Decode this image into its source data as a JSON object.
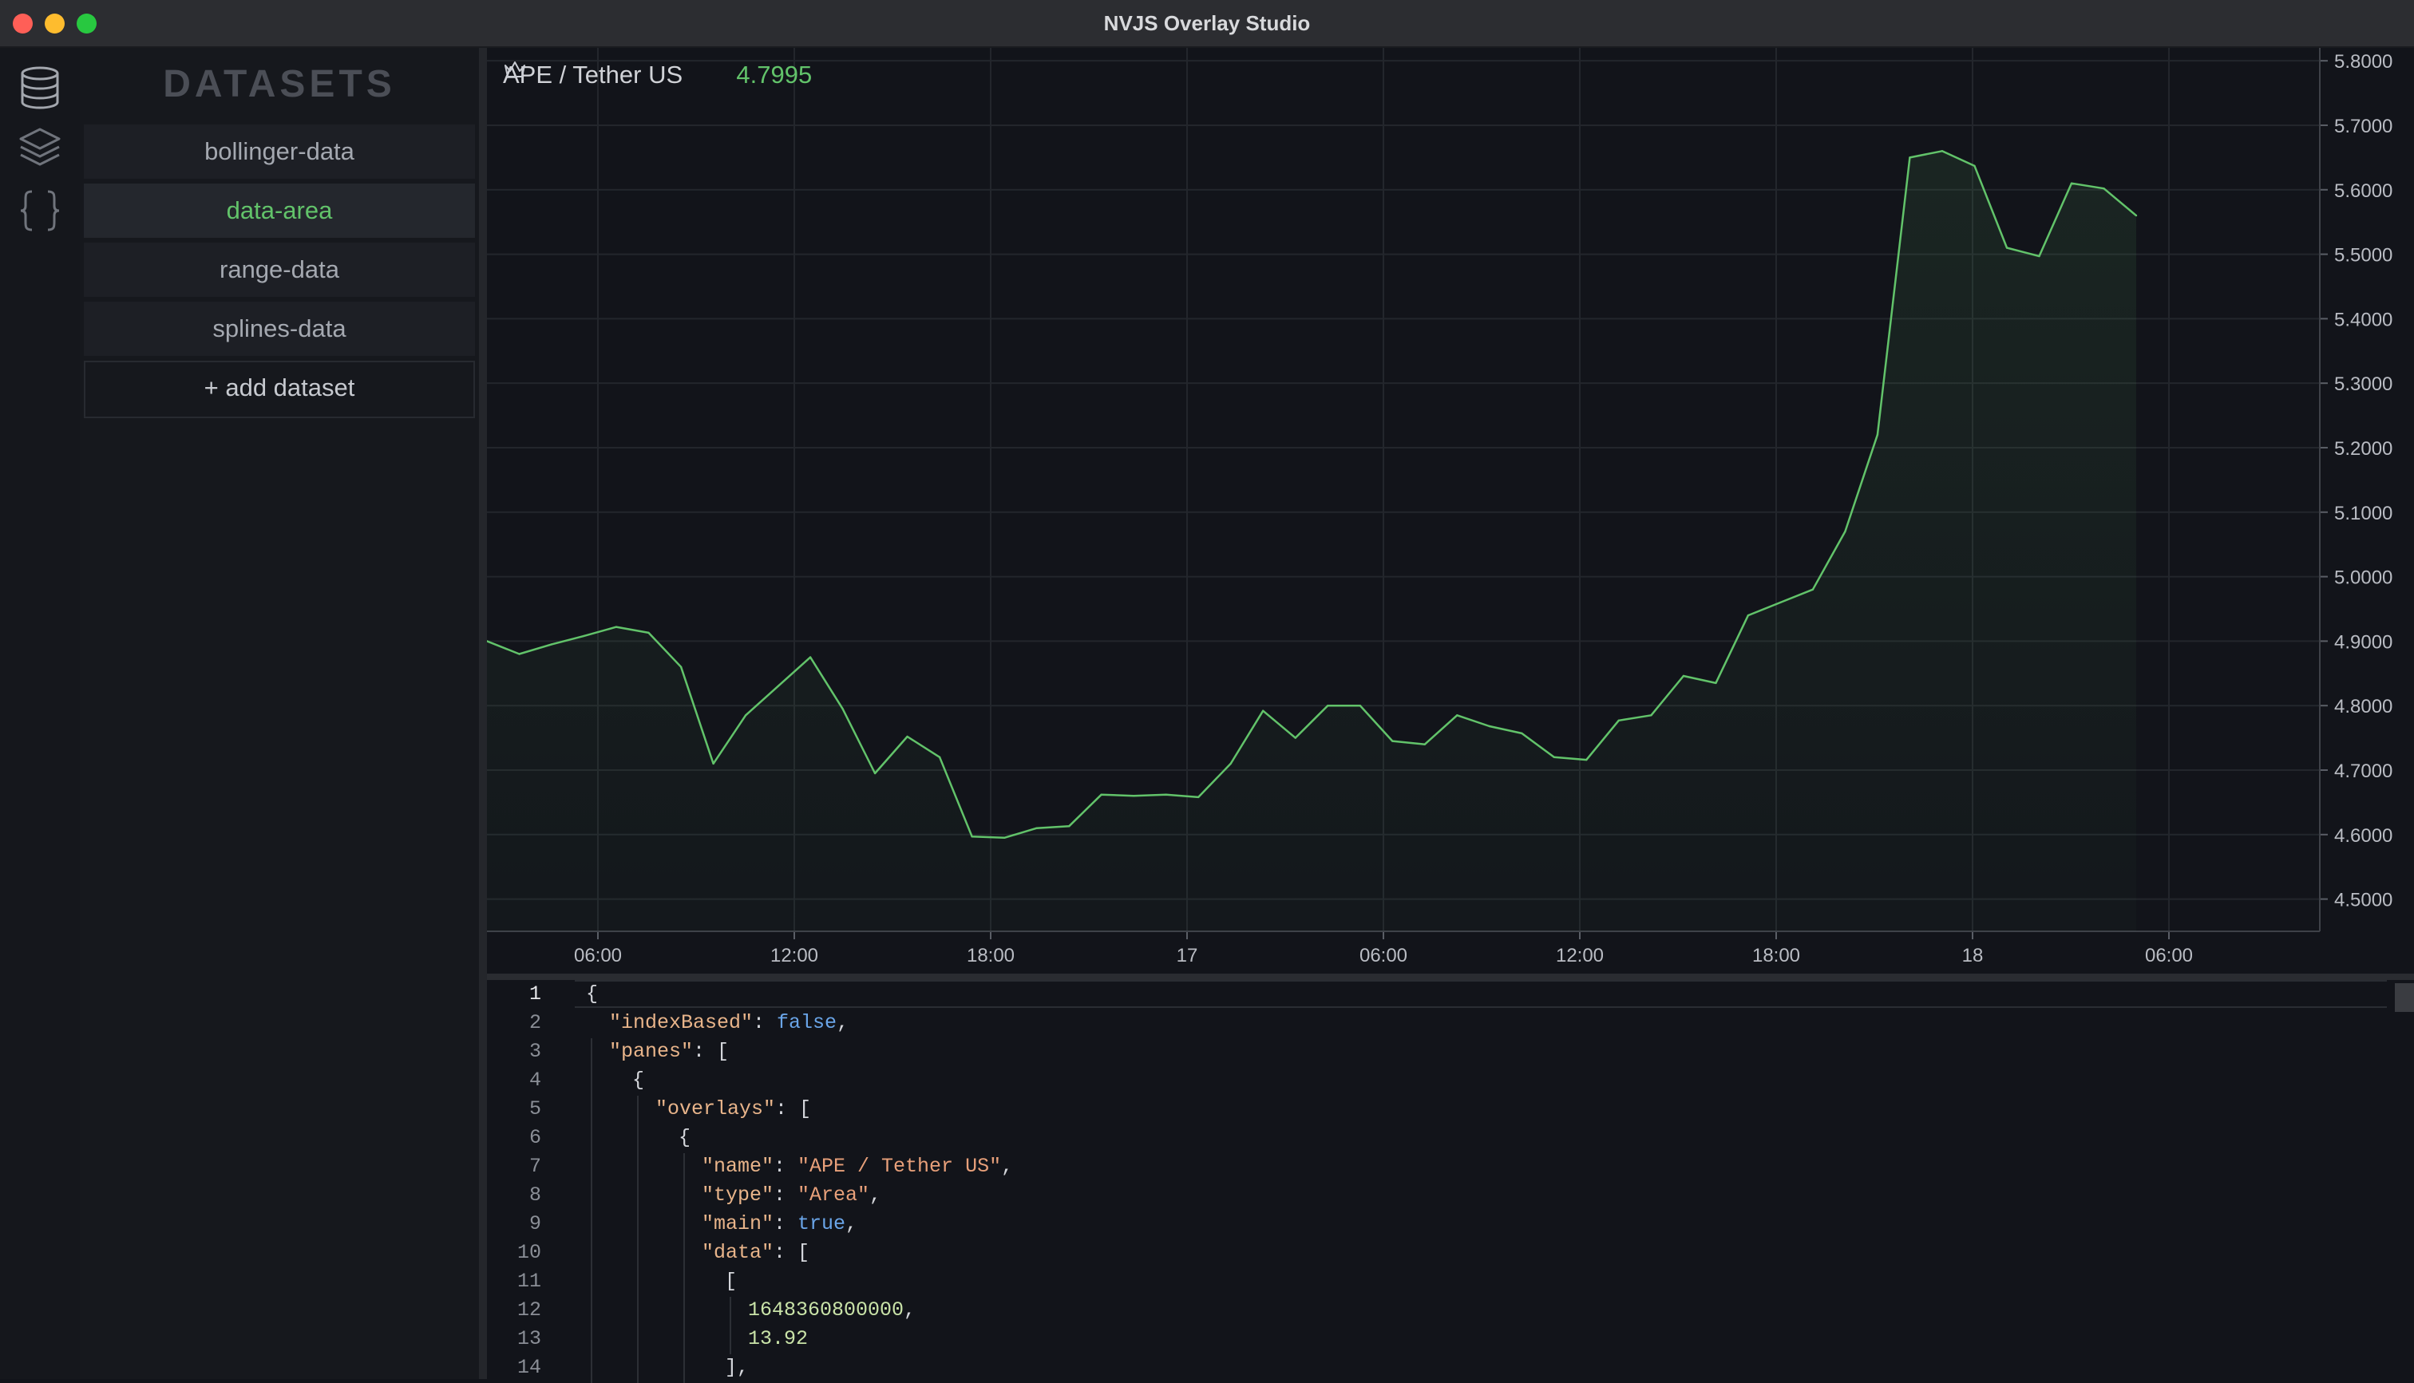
{
  "window": {
    "title": "NVJS Overlay Studio"
  },
  "rail": {
    "icons": [
      "database-icon",
      "layers-icon",
      "braces-icon"
    ]
  },
  "sidebar": {
    "heading": "DATASETS",
    "items": [
      {
        "label": "bollinger-data",
        "active": false
      },
      {
        "label": "data-area",
        "active": true
      },
      {
        "label": "range-data",
        "active": false
      },
      {
        "label": "splines-data",
        "active": false
      }
    ],
    "add_label": "+ add dataset"
  },
  "legend": {
    "symbol": "APE / Tether US",
    "price": "4.7995",
    "icon": "crown-icon"
  },
  "colors": {
    "line": "#62c36a",
    "accent": "#62c36a",
    "background": "#12141a",
    "grid": "#23262c"
  },
  "chart_data": {
    "type": "area",
    "series": [
      {
        "name": "APE / Tether US",
        "values": [
          4.9,
          4.88,
          4.895,
          4.908,
          4.922,
          4.913,
          4.86,
          4.71,
          4.785,
          4.83,
          4.875,
          4.795,
          4.695,
          4.752,
          4.72,
          4.597,
          4.595,
          4.61,
          4.613,
          4.662,
          4.66,
          4.662,
          4.658,
          4.71,
          4.792,
          4.75,
          4.8,
          4.8,
          4.745,
          4.74,
          4.785,
          4.768,
          4.757,
          4.72,
          4.716,
          4.777,
          4.785,
          4.846,
          4.835,
          4.94,
          4.96,
          4.98,
          5.07,
          5.22,
          5.65,
          5.66,
          5.637,
          5.51,
          5.497,
          5.61,
          5.602,
          5.56
        ]
      }
    ],
    "x_ticks": [
      "06:00",
      "12:00",
      "18:00",
      "17",
      "06:00",
      "12:00",
      "18:00",
      "18",
      "06:00"
    ],
    "y_ticks": [
      "5.8000",
      "5.7000",
      "5.6000",
      "5.5000",
      "5.4000",
      "5.3000",
      "5.2000",
      "5.1000",
      "5.0000",
      "4.9000",
      "4.8000",
      "4.7000",
      "4.6000",
      "4.5000"
    ],
    "ylim": [
      4.45,
      5.82
    ],
    "grid": true
  },
  "editor": {
    "lines": [
      {
        "n": "1",
        "indent": 0,
        "parts": [
          [
            "p",
            "{"
          ]
        ]
      },
      {
        "n": "2",
        "indent": 1,
        "parts": [
          [
            "key",
            "\"indexBased\""
          ],
          [
            "p",
            ": "
          ],
          [
            "bool",
            "false"
          ],
          [
            "p",
            ","
          ]
        ]
      },
      {
        "n": "3",
        "indent": 1,
        "parts": [
          [
            "key",
            "\"panes\""
          ],
          [
            "p",
            ": ["
          ]
        ]
      },
      {
        "n": "4",
        "indent": 2,
        "parts": [
          [
            "p",
            "{"
          ]
        ]
      },
      {
        "n": "5",
        "indent": 3,
        "parts": [
          [
            "key",
            "\"overlays\""
          ],
          [
            "p",
            ": ["
          ]
        ]
      },
      {
        "n": "6",
        "indent": 4,
        "parts": [
          [
            "p",
            "{"
          ]
        ]
      },
      {
        "n": "7",
        "indent": 5,
        "parts": [
          [
            "key",
            "\"name\""
          ],
          [
            "p",
            ": "
          ],
          [
            "str",
            "\"APE / Tether US\""
          ],
          [
            "p",
            ","
          ]
        ]
      },
      {
        "n": "8",
        "indent": 5,
        "parts": [
          [
            "key",
            "\"type\""
          ],
          [
            "p",
            ": "
          ],
          [
            "str",
            "\"Area\""
          ],
          [
            "p",
            ","
          ]
        ]
      },
      {
        "n": "9",
        "indent": 5,
        "parts": [
          [
            "key",
            "\"main\""
          ],
          [
            "p",
            ": "
          ],
          [
            "bool",
            "true"
          ],
          [
            "p",
            ","
          ]
        ]
      },
      {
        "n": "10",
        "indent": 5,
        "parts": [
          [
            "key",
            "\"data\""
          ],
          [
            "p",
            ": ["
          ]
        ]
      },
      {
        "n": "11",
        "indent": 6,
        "parts": [
          [
            "p",
            "["
          ]
        ]
      },
      {
        "n": "12",
        "indent": 7,
        "parts": [
          [
            "num",
            "1648360800000"
          ],
          [
            "p",
            ","
          ]
        ]
      },
      {
        "n": "13",
        "indent": 7,
        "parts": [
          [
            "num",
            "13.92"
          ]
        ]
      },
      {
        "n": "14",
        "indent": 6,
        "parts": [
          [
            "p",
            "],"
          ]
        ]
      }
    ]
  }
}
